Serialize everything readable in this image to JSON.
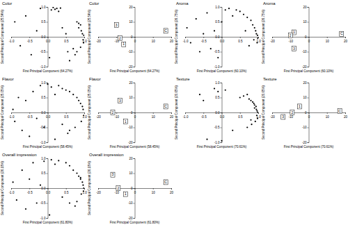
{
  "chart_data": [
    {
      "type": "scatter",
      "title": "Color",
      "x_label": "First Principal Component (64.27%)",
      "y_label": "Second Principal Component (25.54%)",
      "xlim": [
        -1,
        1
      ],
      "ylim": [
        -1,
        1
      ],
      "xticks": [
        {
          "value": -1,
          "label": "-1.0"
        },
        -0.5,
        {
          "value": 0,
          "label": "0.0"
        },
        0.5,
        {
          "value": 1,
          "label": "1.0"
        }
      ],
      "yticks": [
        {
          "value": -1,
          "label": "-1.0"
        },
        -0.5,
        {
          "value": 0,
          "label": "0.0"
        },
        0.5,
        {
          "value": 1,
          "label": "1.0"
        }
      ],
      "x": [
        -0.9,
        -0.75,
        -0.6,
        -0.45,
        -0.3,
        -0.2,
        0.05,
        0.1,
        0.15,
        0.2,
        0.25,
        0.3,
        0.35,
        0.4,
        0.5,
        0.55,
        0.6,
        0.7,
        0.75,
        0.8,
        0.85,
        0.9,
        0.92,
        0.95,
        0.97,
        0.98,
        0.99,
        0.9,
        0.85,
        0.8
      ],
      "values": [
        0.5,
        -0.3,
        0.7,
        -0.6,
        0.2,
        0.95,
        -0.7,
        0.9,
        0.98,
        0.92,
        0.95,
        0.85,
        0.96,
        0.3,
        0.1,
        -0.5,
        -0.8,
        -0.4,
        -0.6,
        0.5,
        0.3,
        0.4,
        0.2,
        0.1,
        -0.1,
        -0.2,
        0.05,
        -0.35,
        0.45,
        -0.5
      ],
      "marker": "dot",
      "color": "#000000"
    },
    {
      "type": "scatter",
      "title": "Color",
      "x_label": "First Principal Component (64.27%)",
      "y_label": "Second Principal Component (25.54%)",
      "xlim": [
        -20,
        20
      ],
      "ylim": [
        -20,
        20
      ],
      "xticks": [
        -20,
        -10,
        0,
        10,
        20
      ],
      "yticks": [
        -20,
        -10,
        0,
        10,
        20
      ],
      "x": [
        -10,
        -8,
        -6,
        17
      ],
      "values": [
        8,
        -1,
        -5,
        4
      ],
      "point_labels": [
        "3",
        "2",
        "1",
        "C"
      ],
      "marker": "box",
      "color": "#000000"
    },
    {
      "type": "scatter",
      "title": "Aroma",
      "x_label": "First Principal Component (60.10%)",
      "y_label": "Second Principal Component (26.75%)",
      "xlim": [
        -1,
        1
      ],
      "ylim": [
        -1,
        1
      ],
      "xticks": [
        {
          "value": -1,
          "label": "-1.0"
        },
        -0.5,
        {
          "value": 0,
          "label": "0.0"
        },
        0.5,
        {
          "value": 1,
          "label": "1.0"
        }
      ],
      "yticks": [
        {
          "value": -1,
          "label": "-1.0"
        },
        -0.5,
        {
          "value": 0,
          "label": "0.0"
        },
        0.5,
        {
          "value": 1,
          "label": "1.0"
        }
      ],
      "x": [
        -0.95,
        -0.85,
        -0.7,
        -0.6,
        -0.5,
        -0.4,
        -0.3,
        -0.2,
        -0.1,
        0.0,
        0.1,
        0.2,
        0.3,
        0.4,
        0.5,
        0.6,
        0.65,
        0.7,
        0.75,
        0.8,
        0.85,
        0.88,
        0.9,
        0.93,
        0.95,
        0.97,
        0.98,
        0.99
      ],
      "values": [
        0.3,
        -0.2,
        0.6,
        -0.5,
        0.1,
        0.8,
        -0.4,
        0.2,
        -0.7,
        0.5,
        0.9,
        0.95,
        0.7,
        0.9,
        0.85,
        0.75,
        0.2,
        0.65,
        -0.3,
        0.55,
        0.4,
        -0.1,
        0.3,
        0.2,
        0.1,
        -0.2,
        0.05,
        -0.05
      ],
      "marker": "dot",
      "color": "#000000"
    },
    {
      "type": "scatter",
      "title": "Aroma",
      "x_label": "First Principal Component (60.10%)",
      "y_label": "Second Principal Component (26.75%)",
      "xlim": [
        -20,
        20
      ],
      "ylim": [
        -20,
        20
      ],
      "xticks": [
        -20,
        -10,
        0,
        10,
        20
      ],
      "yticks": [
        -20,
        -10,
        0,
        10,
        20
      ],
      "x": [
        -8,
        -10,
        -8,
        18
      ],
      "values": [
        3,
        1,
        -8,
        2
      ],
      "point_labels": [
        "1",
        "2",
        "3",
        "C"
      ],
      "marker": "box",
      "color": "#000000"
    },
    {
      "type": "scatter",
      "title": "Flavor",
      "x_label": "First Principal Component (58.45%)",
      "y_label": "Second Principal Component (25.05%)",
      "xlim": [
        -1,
        1
      ],
      "ylim": [
        -1,
        1
      ],
      "xticks": [
        {
          "value": -1,
          "label": "-1.0"
        },
        -0.5,
        {
          "value": 0,
          "label": "0.0"
        },
        0.5,
        {
          "value": 1,
          "label": "1.0"
        }
      ],
      "yticks": [
        {
          "value": -1,
          "label": "-1.0"
        },
        -0.5,
        {
          "value": 0,
          "label": "0.0"
        },
        0.5,
        {
          "value": 1,
          "label": "1.0"
        }
      ],
      "x": [
        -0.95,
        -0.9,
        -0.8,
        -0.7,
        -0.6,
        -0.5,
        -0.4,
        -0.3,
        -0.2,
        -0.1,
        0.0,
        0.1,
        0.2,
        0.3,
        0.4,
        0.5,
        0.55,
        0.6,
        0.7,
        0.75,
        0.8,
        0.85,
        0.9,
        0.92,
        0.95,
        0.97,
        0.99,
        0.6,
        0.4,
        0.2
      ],
      "values": [
        0.1,
        -0.3,
        0.5,
        -0.6,
        0.4,
        -0.8,
        0.7,
        -0.2,
        0.9,
        -0.5,
        0.95,
        0.85,
        -0.9,
        0.9,
        0.8,
        0.75,
        -0.7,
        0.7,
        0.6,
        -0.5,
        0.5,
        0.4,
        0.3,
        -0.3,
        0.2,
        0.1,
        -0.1,
        -0.6,
        -0.4,
        0.6
      ],
      "marker": "dot",
      "color": "#000000"
    },
    {
      "type": "scatter",
      "title": "Flavor",
      "x_label": "First Principal Component (58.45%)",
      "y_label": "Second Principal Component (25.05%)",
      "xlim": [
        -20,
        20
      ],
      "ylim": [
        -20,
        20
      ],
      "xticks": [
        -20,
        -10,
        0,
        10,
        20
      ],
      "yticks": [
        -20,
        -10,
        0,
        10,
        20
      ],
      "x": [
        -8,
        -12,
        -5,
        17
      ],
      "values": [
        8,
        0,
        -6,
        4
      ],
      "point_labels": [
        "3",
        "2",
        "1",
        "C"
      ],
      "marker": "box",
      "color": "#000000"
    },
    {
      "type": "scatter",
      "title": "Texture",
      "x_label": "First Principal Component (70.61%)",
      "y_label": "Second Principal Component (20.65%)",
      "xlim": [
        -1,
        1
      ],
      "ylim": [
        -1,
        1
      ],
      "xticks": [
        {
          "value": -1,
          "label": "-1.0"
        },
        -0.5,
        {
          "value": 0,
          "label": "0.0"
        },
        0.5,
        {
          "value": 1,
          "label": "1.0"
        }
      ],
      "yticks": [
        {
          "value": -1,
          "label": "-1.0"
        },
        -0.5,
        {
          "value": 0,
          "label": "0.0"
        },
        0.5,
        {
          "value": 1,
          "label": "1.0"
        }
      ],
      "x": [
        -0.6,
        -0.5,
        -0.4,
        -0.2,
        -0.1,
        0.0,
        0.1,
        0.3,
        0.5,
        0.6,
        0.7,
        0.75,
        0.8,
        0.82,
        0.85,
        0.88,
        0.9,
        0.92,
        0.94,
        0.95,
        0.96,
        0.97,
        0.98,
        0.99,
        0.9,
        0.8,
        0.7
      ],
      "values": [
        0.6,
        0.4,
        -0.9,
        0.8,
        0.7,
        -0.95,
        0.75,
        -0.6,
        0.5,
        0.55,
        -0.5,
        0.45,
        0.4,
        -0.4,
        0.35,
        0.3,
        0.25,
        -0.3,
        0.2,
        0.1,
        -0.1,
        0.05,
        -0.2,
        0.0,
        0.15,
        -0.25,
        0.6
      ],
      "marker": "dot",
      "color": "#000000"
    },
    {
      "type": "scatter",
      "title": "Texture",
      "x_label": "First Principal Component (70.61%)",
      "y_label": "Second Principal Component (20.65%)",
      "xlim": [
        -20,
        20
      ],
      "ylim": [
        -20,
        20
      ],
      "xticks": [
        -20,
        -10,
        0,
        10,
        20
      ],
      "yticks": [
        -20,
        -10,
        0,
        10,
        20
      ],
      "x": [
        -5,
        -9,
        -14,
        17
      ],
      "values": [
        4,
        0,
        -3,
        1
      ],
      "point_labels": [
        "1",
        "2",
        "3",
        "C"
      ],
      "marker": "box",
      "color": "#000000"
    },
    {
      "type": "scatter",
      "title": "Overall impression",
      "x_label": "First Principal Component (61.80%)",
      "y_label": "Second Principal Component (26.18%)",
      "xlim": [
        -1,
        1
      ],
      "ylim": [
        -1,
        1
      ],
      "xticks": [
        {
          "value": -1,
          "label": "-1.0"
        },
        -0.5,
        {
          "value": 0,
          "label": "0.0"
        },
        0.5,
        {
          "value": 1,
          "label": "1.0"
        }
      ],
      "yticks": [
        {
          "value": -1,
          "label": "-1.0"
        },
        -0.5,
        {
          "value": 0,
          "label": "0.0"
        },
        0.5,
        {
          "value": 1,
          "label": "1.0"
        }
      ],
      "x": [
        -0.95,
        -0.85,
        -0.7,
        -0.6,
        -0.5,
        -0.4,
        -0.3,
        -0.2,
        -0.1,
        0.05,
        0.1,
        0.2,
        0.3,
        0.4,
        0.5,
        0.6,
        0.7,
        0.75,
        0.8,
        0.85,
        0.9,
        0.92,
        0.95,
        0.97,
        0.98,
        0.99,
        0.9,
        0.8,
        0.6
      ],
      "values": [
        0.2,
        -0.4,
        0.6,
        -0.7,
        0.3,
        0.85,
        -0.5,
        0.1,
        0.9,
        -0.9,
        0.95,
        0.8,
        0.92,
        -0.3,
        0.85,
        0.75,
        0.6,
        -0.6,
        0.5,
        0.4,
        0.3,
        -0.2,
        0.2,
        0.1,
        -0.1,
        0.0,
        0.35,
        -0.45,
        -0.5
      ],
      "marker": "dot",
      "color": "#000000"
    },
    {
      "type": "scatter",
      "title": "Overall impression",
      "x_label": "First Principal Component (61.80%)",
      "y_label": "Second Principal Component (26.18%)",
      "xlim": [
        -20,
        20
      ],
      "ylim": [
        -20,
        20
      ],
      "xticks": [
        -20,
        -10,
        0,
        10,
        20
      ],
      "yticks": [
        -20,
        -10,
        0,
        10,
        20
      ],
      "x": [
        -12,
        -9,
        -5,
        17
      ],
      "values": [
        9,
        0,
        -4,
        4
      ],
      "point_labels": [
        "3",
        "2",
        "1",
        "C"
      ],
      "marker": "box",
      "color": "#000000"
    }
  ]
}
